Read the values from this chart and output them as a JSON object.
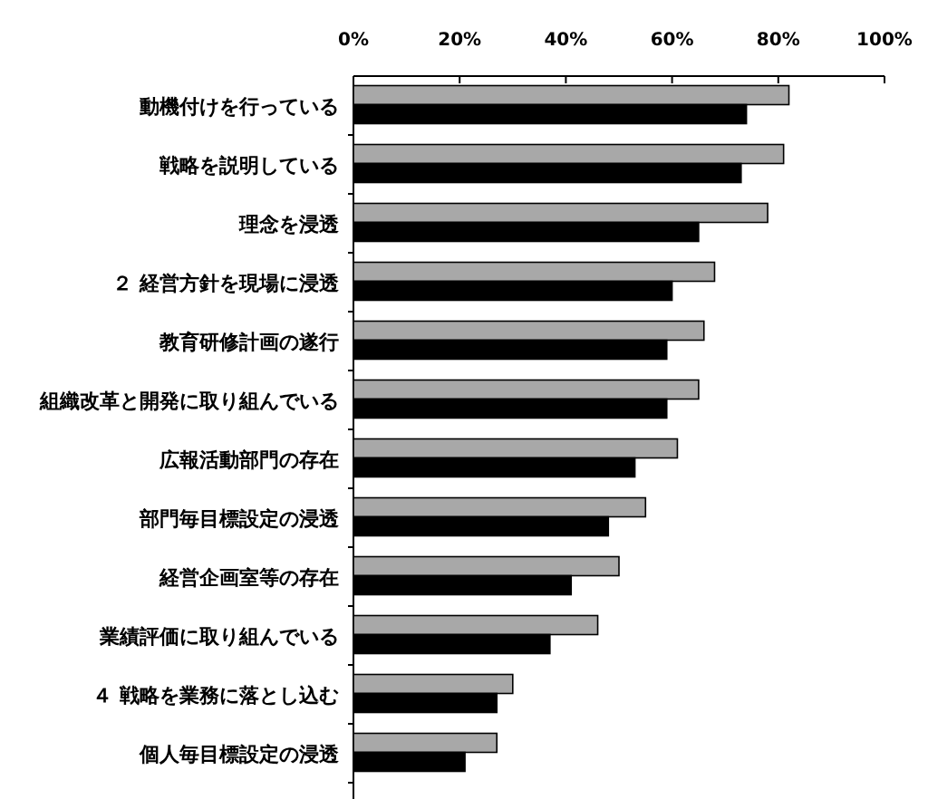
{
  "chart_data": {
    "type": "bar",
    "orientation": "horizontal",
    "categories": [
      "動機付けを行っている",
      "戦略を説明している",
      "理念を浸透",
      "２ 経営方針を現場に浸透",
      "教育研修計画の遂行",
      "組織改革と開発に取り組んでいる",
      "広報活動部門の存在",
      "部門毎目標設定の浸透",
      "経営企画室等の存在",
      "業績評価に取り組んでいる",
      "４ 戦略を業務に落とし込む",
      "個人毎目標設定の浸透"
    ],
    "series": [
      {
        "color": "#a8a8a8",
        "values": [
          82,
          81,
          78,
          68,
          66,
          65,
          61,
          55,
          50,
          46,
          30,
          27
        ]
      },
      {
        "color": "#000000",
        "values": [
          74,
          73,
          65,
          60,
          59,
          59,
          53,
          48,
          41,
          37,
          27,
          21
        ]
      }
    ],
    "xlim": [
      0,
      100
    ],
    "xticks": [
      {
        "value": 0,
        "label": "0%"
      },
      {
        "value": 20,
        "label": "20%"
      },
      {
        "value": 40,
        "label": "40%"
      },
      {
        "value": 60,
        "label": "60%"
      },
      {
        "value": 80,
        "label": "80%"
      },
      {
        "value": 100,
        "label": "100%"
      }
    ]
  }
}
